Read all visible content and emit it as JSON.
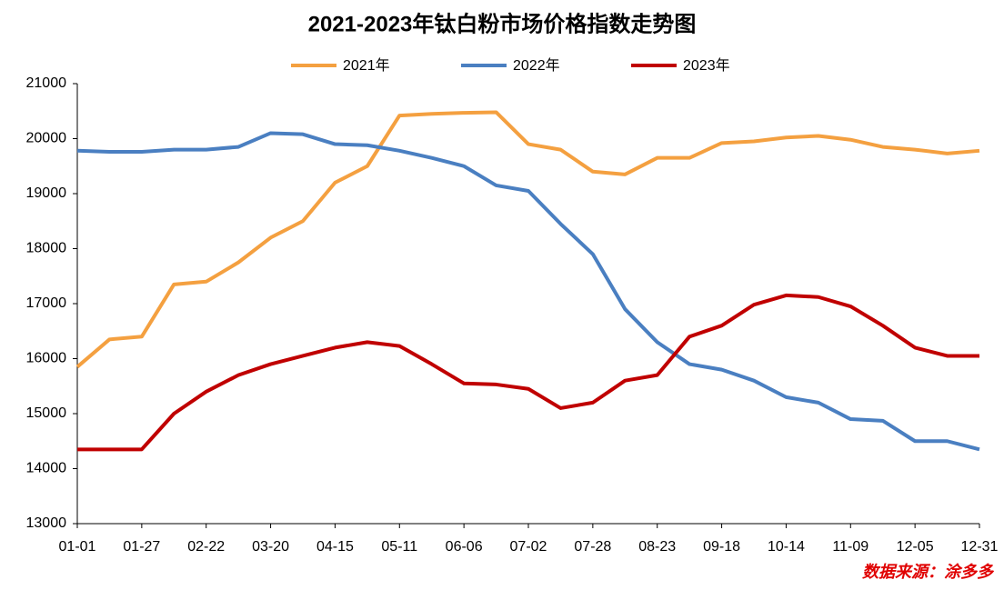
{
  "chart_data": {
    "type": "line",
    "title": "2021-2023年钛白粉市场价格指数走势图",
    "categories": [
      "01-01",
      null,
      "01-27",
      null,
      "02-22",
      null,
      "03-20",
      null,
      "04-15",
      null,
      "05-11",
      null,
      "06-06",
      null,
      "07-02",
      null,
      "07-28",
      null,
      "08-23",
      null,
      "09-18",
      null,
      "10-14",
      null,
      "11-09",
      null,
      "12-05",
      null,
      "12-31"
    ],
    "series": [
      {
        "name": "2021年",
        "color": "#f4a040",
        "values": [
          15850,
          16350,
          16400,
          17350,
          17400,
          17750,
          18200,
          18500,
          19200,
          19500,
          20420,
          20450,
          20470,
          20480,
          19900,
          19800,
          19400,
          19350,
          19650,
          19650,
          19920,
          19950,
          20020,
          20050,
          19980,
          19850,
          19800,
          19730,
          19780
        ]
      },
      {
        "name": "2022年",
        "color": "#4a7fc1",
        "values": [
          19780,
          19760,
          19760,
          19800,
          19800,
          19850,
          20100,
          20080,
          19900,
          19880,
          19780,
          19650,
          19500,
          19150,
          19050,
          18450,
          17900,
          16900,
          16300,
          15900,
          15800,
          15600,
          15300,
          15200,
          14900,
          14870,
          14500,
          14500,
          14350
        ]
      },
      {
        "name": "2023年",
        "color": "#c00000",
        "values": [
          14350,
          14350,
          14350,
          15000,
          15400,
          15700,
          15900,
          16050,
          16200,
          16300,
          16230,
          15900,
          15550,
          15530,
          15450,
          15100,
          15200,
          15600,
          15700,
          16400,
          16600,
          16980,
          17150,
          17120,
          16950,
          16600,
          16200,
          16050,
          16050
        ]
      }
    ],
    "ylim": [
      13000,
      21000
    ],
    "yticks": [
      13000,
      14000,
      15000,
      16000,
      17000,
      18000,
      19000,
      20000,
      21000
    ],
    "legend": "top",
    "source": "数据来源：涂多多"
  }
}
